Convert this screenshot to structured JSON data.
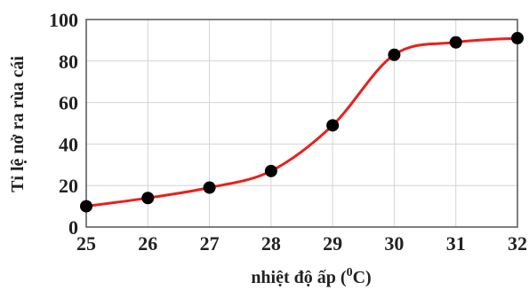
{
  "chart_data": {
    "type": "line",
    "title": "",
    "xlabel": "nhiệt độ ấp (",
    "xlabel_sup": "0",
    "xlabel_end": "C)",
    "ylabel": "Tỉ lệ nở ra rùa cái",
    "xlim": [
      25,
      32
    ],
    "ylim": [
      0,
      100
    ],
    "xticks": [
      "25",
      "26",
      "27",
      "28",
      "29",
      "30",
      "31",
      "32"
    ],
    "yticks": [
      "0",
      "20",
      "40",
      "60",
      "80",
      "100"
    ],
    "grid": true,
    "series": [
      {
        "x": [
          25,
          26,
          27,
          28,
          29,
          30,
          31,
          32
        ],
        "y": [
          10,
          14,
          19,
          27,
          49,
          83,
          89,
          91
        ],
        "line_color": "#e8211c",
        "marker_color": "#000000"
      }
    ]
  }
}
